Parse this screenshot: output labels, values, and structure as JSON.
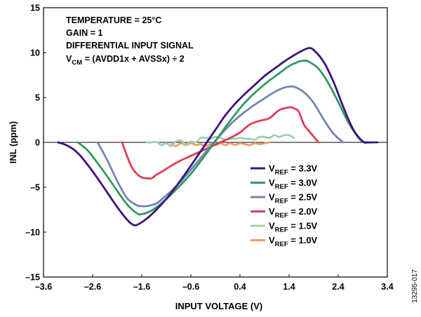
{
  "chart_data": {
    "type": "line",
    "title": "",
    "xlabel": "INPUT VOLTAGE (V)",
    "ylabel": "INL (ppm)",
    "xlim": [
      -3.6,
      3.4
    ],
    "ylim": [
      -15,
      15
    ],
    "x_ticks": [
      -3.6,
      -2.6,
      -1.6,
      -0.6,
      0.4,
      1.4,
      2.4,
      3.4
    ],
    "x_tick_labels": [
      "–3.6",
      "–2.6",
      "–1.6",
      "–0.6",
      "0.4",
      "1.4",
      "2.4",
      "3.4"
    ],
    "y_ticks": [
      -15,
      -10,
      -5,
      0,
      5,
      10,
      15
    ],
    "y_tick_labels": [
      "–15",
      "–10",
      "–5",
      "0",
      "5",
      "10",
      "15"
    ],
    "grid": false,
    "legend_position": "lower-right",
    "annotations": [
      {
        "text": "TEMPERATURE = 25°C"
      },
      {
        "text": "GAIN = 1"
      },
      {
        "text": "DIFFERENTIAL INPUT SIGNAL"
      },
      {
        "main": "V",
        "sub": "CM",
        "rest": " = (AVDD1x + AVSSx) ÷ 2"
      }
    ],
    "series": [
      {
        "name": "3.3V",
        "label_main": "V",
        "label_sub": "REF",
        "label_rest": " = 3.3V",
        "color": "#3b1380",
        "x": [
          -3.3,
          -3.1,
          -2.9,
          -2.7,
          -2.5,
          -2.3,
          -2.1,
          -1.9,
          -1.8,
          -1.7,
          -1.5,
          -1.3,
          -1.1,
          -0.9,
          -0.7,
          -0.5,
          -0.3,
          -0.1,
          0.1,
          0.3,
          0.5,
          0.7,
          0.9,
          1.1,
          1.3,
          1.5,
          1.7,
          1.8,
          1.9,
          2.1,
          2.3,
          2.5,
          2.7,
          2.9,
          3.0,
          3.1,
          3.2
        ],
        "y": [
          0,
          -0.4,
          -1.2,
          -2.5,
          -4.0,
          -5.6,
          -7.2,
          -8.6,
          -9.1,
          -9.2,
          -8.5,
          -7.5,
          -6.3,
          -4.9,
          -3.4,
          -1.8,
          -0.2,
          1.4,
          3.0,
          4.3,
          5.4,
          6.4,
          7.4,
          8.2,
          9.0,
          9.7,
          10.3,
          10.5,
          10.3,
          9.0,
          6.8,
          4.0,
          1.5,
          0.1,
          0,
          0,
          0
        ]
      },
      {
        "name": "3.0V",
        "label_main": "V",
        "label_sub": "REF",
        "label_rest": " = 3.0V",
        "color": "#2f9a5e",
        "x": [
          -2.9,
          -2.7,
          -2.5,
          -2.3,
          -2.1,
          -1.9,
          -1.7,
          -1.6,
          -1.4,
          -1.2,
          -1.0,
          -0.8,
          -0.6,
          -0.4,
          -0.2,
          0.0,
          0.2,
          0.4,
          0.6,
          0.8,
          1.0,
          1.2,
          1.4,
          1.6,
          1.7,
          1.8,
          2.0,
          2.2,
          2.4,
          2.6,
          2.8,
          2.9,
          3.0
        ],
        "y": [
          0,
          -0.9,
          -2.3,
          -3.8,
          -5.4,
          -6.9,
          -7.9,
          -8.0,
          -7.6,
          -6.8,
          -5.8,
          -4.7,
          -3.5,
          -2.1,
          -0.6,
          0.9,
          2.4,
          3.8,
          5.0,
          6.0,
          6.9,
          7.7,
          8.5,
          9.0,
          9.1,
          9.0,
          8.2,
          6.6,
          4.5,
          2.3,
          0.6,
          0.1,
          0
        ]
      },
      {
        "name": "2.5V",
        "label_main": "V",
        "label_sub": "REF",
        "label_rest": " = 2.5V",
        "color": "#6f86b4",
        "x": [
          -2.5,
          -2.3,
          -2.1,
          -1.9,
          -1.7,
          -1.6,
          -1.5,
          -1.3,
          -1.1,
          -0.9,
          -0.7,
          -0.5,
          -0.3,
          -0.1,
          0.1,
          0.3,
          0.5,
          0.7,
          0.9,
          1.1,
          1.3,
          1.4,
          1.5,
          1.7,
          1.9,
          2.1,
          2.3,
          2.5
        ],
        "y": [
          0,
          -2.0,
          -4.3,
          -6.2,
          -7.0,
          -7.1,
          -7.1,
          -6.8,
          -5.9,
          -4.9,
          -3.7,
          -2.4,
          -1.1,
          0.2,
          1.4,
          2.5,
          3.4,
          4.2,
          4.9,
          5.6,
          6.1,
          6.2,
          6.2,
          5.6,
          4.4,
          2.6,
          1.0,
          0
        ]
      },
      {
        "name": "2.0V",
        "label_main": "V",
        "label_sub": "REF",
        "label_rest": " = 2.0V",
        "color": "#dd3e58",
        "x": [
          -2.0,
          -1.9,
          -1.8,
          -1.7,
          -1.6,
          -1.5,
          -1.4,
          -1.3,
          -1.2,
          -1.0,
          -0.8,
          -0.6,
          -0.4,
          -0.2,
          0.0,
          0.2,
          0.4,
          0.6,
          0.8,
          1.0,
          1.2,
          1.4,
          1.5,
          1.6,
          1.7,
          1.8,
          2.0
        ],
        "y": [
          0,
          -1.5,
          -2.8,
          -3.5,
          -3.9,
          -4.0,
          -4.0,
          -3.6,
          -3.3,
          -2.6,
          -2.0,
          -1.5,
          -1.0,
          -0.5,
          0.0,
          0.5,
          1.1,
          2.0,
          2.4,
          2.7,
          3.6,
          3.9,
          3.8,
          3.4,
          2.0,
          1.3,
          0
        ]
      },
      {
        "name": "1.5V",
        "label_main": "V",
        "label_sub": "REF",
        "label_rest": " = 1.5V",
        "color": "#9ed0b6",
        "x": [
          -1.5,
          -1.4,
          -1.3,
          -1.2,
          -1.1,
          -1.0,
          -0.9,
          -0.8,
          -0.7,
          -0.6,
          -0.5,
          -0.4,
          -0.3,
          -0.2,
          -0.1,
          0.0,
          0.1,
          0.2,
          0.3,
          0.4,
          0.5,
          0.6,
          0.7,
          0.8,
          0.9,
          1.0,
          1.1,
          1.2,
          1.3,
          1.4,
          1.5
        ],
        "y": [
          0,
          0,
          0.05,
          -0.3,
          -0.1,
          -0.4,
          0.1,
          0.2,
          -0.2,
          0.1,
          0.0,
          0.5,
          0.5,
          0.4,
          0.6,
          0.5,
          0.3,
          0.4,
          0.4,
          0.5,
          0.4,
          0.4,
          0.3,
          0.6,
          0.6,
          0.5,
          0.8,
          0.6,
          0.8,
          0.8,
          0.5
        ]
      },
      {
        "name": "1.0V",
        "label_main": "V",
        "label_sub": "REF",
        "label_rest": " = 1.0V",
        "color": "#f29a63",
        "x": [
          -1.0,
          -0.9,
          -0.8,
          -0.7,
          -0.6,
          -0.5,
          -0.4,
          -0.3,
          -0.2,
          -0.1,
          0.0,
          0.1,
          0.2,
          0.3,
          0.4,
          0.5,
          0.6,
          0.7,
          0.8,
          0.9,
          1.0
        ],
        "y": [
          -0.2,
          -0.4,
          -0.1,
          -0.3,
          -0.1,
          -0.3,
          -0.2,
          -0.4,
          -0.2,
          -0.3,
          -0.1,
          -0.3,
          -0.1,
          -0.3,
          -0.1,
          -0.2,
          -0.3,
          -0.1,
          -0.2,
          -0.1,
          0.0
        ]
      }
    ]
  },
  "figure_id": "13295-017"
}
